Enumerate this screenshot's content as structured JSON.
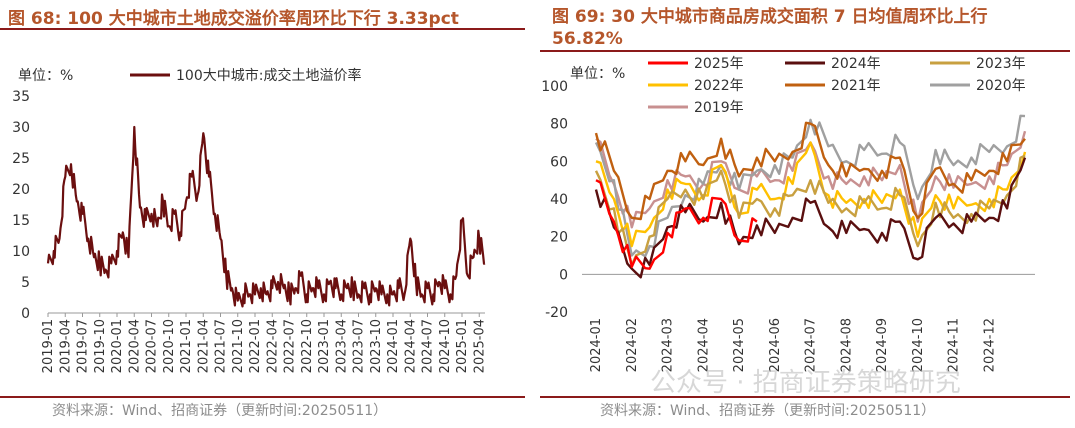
{
  "left": {
    "title": "图 68: 100 大中城市土地成交溢价率周环比下行 3.33pct",
    "source": "资料来源：Wind、招商证券（更新时间:20250511）",
    "colors": {
      "line": "#6b0f0f",
      "title": "#b5562b"
    },
    "chart_data": {
      "type": "line",
      "unit_label": "单位：%",
      "legend": [
        "100大中城市:成交土地溢价率"
      ],
      "ylim": [
        0,
        35
      ],
      "yticks": [
        0,
        5,
        10,
        15,
        20,
        25,
        30,
        35
      ],
      "xticks": [
        "2019-01",
        "2019-04",
        "2019-07",
        "2019-10",
        "2020-01",
        "2020-04",
        "2020-07",
        "2020-10",
        "2021-01",
        "2021-04",
        "2021-07",
        "2021-10",
        "2022-01",
        "2022-04",
        "2022-07",
        "2022-10",
        "2023-01",
        "2023-04",
        "2023-07",
        "2023-10",
        "2024-01",
        "2024-04",
        "2024-07",
        "2024-10",
        "2025-01",
        "2025-04"
      ],
      "series": [
        {
          "name": "100大中城市:成交土地溢价率",
          "color": "#6b0f0f",
          "x": [
            "2019-01",
            "2019-02",
            "2019-03",
            "2019-04",
            "2019-05",
            "2019-06",
            "2019-07",
            "2019-08",
            "2019-09",
            "2019-10",
            "2019-11",
            "2019-12",
            "2020-01",
            "2020-02",
            "2020-03",
            "2020-04",
            "2020-05",
            "2020-06",
            "2020-07",
            "2020-08",
            "2020-09",
            "2020-10",
            "2020-11",
            "2020-12",
            "2021-01",
            "2021-02",
            "2021-03",
            "2021-04",
            "2021-05",
            "2021-06",
            "2021-07",
            "2021-08",
            "2021-09",
            "2021-10",
            "2021-11",
            "2021-12",
            "2022-01",
            "2022-02",
            "2022-03",
            "2022-04",
            "2022-05",
            "2022-06",
            "2022-07",
            "2022-08",
            "2022-09",
            "2022-10",
            "2022-11",
            "2022-12",
            "2023-01",
            "2023-02",
            "2023-03",
            "2023-04",
            "2023-05",
            "2023-06",
            "2023-07",
            "2023-08",
            "2023-09",
            "2023-10",
            "2023-11",
            "2023-12",
            "2024-01",
            "2024-02",
            "2024-03",
            "2024-04",
            "2024-05",
            "2024-06",
            "2024-07",
            "2024-08",
            "2024-09",
            "2024-10",
            "2024-11",
            "2024-12",
            "2025-01",
            "2025-02",
            "2025-03",
            "2025-04",
            "2025-05"
          ],
          "values": [
            8,
            10,
            12,
            22,
            24,
            18,
            16,
            12,
            9,
            8,
            7,
            8,
            10,
            13,
            9,
            30,
            17,
            15,
            16,
            14,
            18,
            14,
            16,
            13,
            18,
            22,
            19,
            29,
            22,
            16,
            12,
            6,
            4,
            2,
            3,
            3,
            3,
            4,
            3,
            4,
            5,
            4,
            3,
            4,
            6,
            3,
            4,
            4,
            3,
            5,
            4,
            3,
            4,
            4,
            3,
            4,
            3,
            4,
            3,
            3,
            3,
            4,
            3,
            12,
            5,
            3,
            4,
            3,
            5,
            4,
            3,
            6,
            15,
            6,
            9,
            12,
            8
          ]
        }
      ]
    }
  },
  "right": {
    "title": "图 69:  30 大中城市商品房成交面积 7 日均值周环比上行 56.82%",
    "source": "资料来源：Wind、招商证券（更新时间:20250511）",
    "watermark": "公众号 · 招商证券策略研究",
    "chart_data": {
      "type": "line",
      "unit_label": "单位：%",
      "ylim": [
        -20,
        100
      ],
      "yticks": [
        -20,
        0,
        20,
        40,
        60,
        80,
        100
      ],
      "xticks": [
        "2024-01",
        "2024-02",
        "2024-03",
        "2024-04",
        "2024-05",
        "2024-06",
        "2024-07",
        "2024-08",
        "2024-09",
        "2024-10",
        "2024-11",
        "2024-12"
      ],
      "x": [
        "01-01",
        "01-15",
        "02-01",
        "02-15",
        "03-01",
        "03-15",
        "04-01",
        "04-15",
        "05-01",
        "05-15",
        "06-01",
        "06-15",
        "07-01",
        "07-15",
        "08-01",
        "08-15",
        "09-01",
        "09-15",
        "10-01",
        "10-15",
        "11-01",
        "11-15",
        "12-01",
        "12-15",
        "12-31"
      ],
      "series": [
        {
          "name": "2025年",
          "color": "#ff0000",
          "values": [
            50,
            28,
            4,
            3,
            22,
            35,
            30,
            40,
            18,
            28,
            null,
            null,
            null,
            null,
            null,
            null,
            null,
            null,
            null,
            null,
            null,
            null,
            null,
            null,
            null
          ]
        },
        {
          "name": "2024年",
          "color": "#5a0f0f",
          "values": [
            45,
            25,
            3,
            5,
            25,
            33,
            28,
            38,
            16,
            26,
            22,
            30,
            38,
            25,
            22,
            24,
            22,
            28,
            8,
            30,
            27,
            28,
            30,
            35,
            62
          ]
        },
        {
          "name": "2023年",
          "color": "#c8a040",
          "values": [
            55,
            35,
            5,
            20,
            40,
            45,
            40,
            55,
            30,
            40,
            35,
            42,
            50,
            38,
            35,
            38,
            35,
            42,
            15,
            38,
            30,
            32,
            35,
            42,
            63
          ]
        },
        {
          "name": "2022年",
          "color": "#ffc000",
          "values": [
            60,
            40,
            15,
            25,
            45,
            48,
            42,
            58,
            32,
            45,
            40,
            48,
            70,
            42,
            38,
            40,
            38,
            45,
            20,
            42,
            35,
            37,
            40,
            45,
            65
          ]
        },
        {
          "name": "2021年",
          "color": "#c06010",
          "values": [
            75,
            55,
            30,
            40,
            55,
            60,
            58,
            72,
            52,
            62,
            60,
            65,
            80,
            58,
            52,
            56,
            55,
            62,
            30,
            56,
            48,
            50,
            55,
            60,
            72
          ]
        },
        {
          "name": "2020年",
          "color": "#a0a0a0",
          "values": [
            70,
            50,
            10,
            15,
            30,
            42,
            48,
            58,
            45,
            55,
            58,
            62,
            82,
            68,
            60,
            66,
            64,
            70,
            40,
            66,
            58,
            62,
            65,
            68,
            84
          ]
        },
        {
          "name": "2019年",
          "color": "#c89090",
          "values": [
            72,
            48,
            25,
            35,
            50,
            52,
            48,
            60,
            45,
            52,
            50,
            55,
            70,
            52,
            48,
            52,
            50,
            58,
            28,
            52,
            46,
            48,
            52,
            58,
            76
          ]
        }
      ]
    }
  }
}
